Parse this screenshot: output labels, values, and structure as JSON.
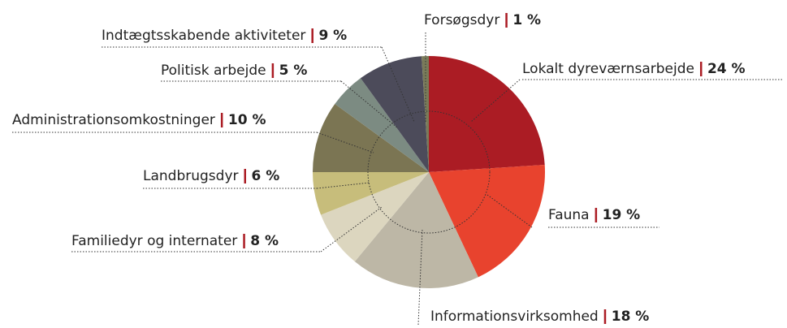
{
  "chart_data": {
    "type": "pie",
    "categories": [
      "Lokalt dyreværnsarbejde",
      "Fauna",
      "Informationsvirksomhed",
      "Familiedyr og internater",
      "Landbrugsdyr",
      "Administrationsomkostninger",
      "Politisk arbejde",
      "Indtægtsskabende aktiviteter",
      "Forsøgsdyr"
    ],
    "values": [
      24,
      19,
      18,
      8,
      6,
      10,
      5,
      9,
      1
    ],
    "value_labels": [
      "24 %",
      "19 %",
      "18 %",
      "8 %",
      "6 %",
      "10 %",
      "5 %",
      "9 %",
      "1 %"
    ],
    "colors": [
      "#ab1c24",
      "#e8432e",
      "#bdb7a6",
      "#dcd6bf",
      "#c7bd7b",
      "#7b7553",
      "#7c8b82",
      "#4c4b5a",
      "#7a7b5a"
    ]
  }
}
